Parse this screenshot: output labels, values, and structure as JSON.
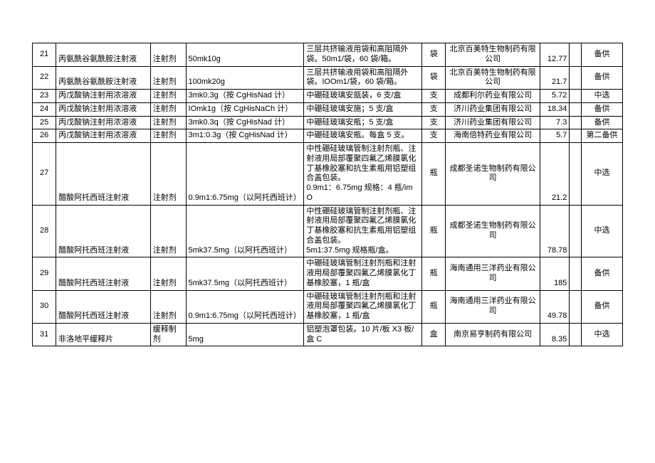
{
  "table": {
    "font_size": 11,
    "border_color": "#000000",
    "background": "#ffffff",
    "rows": [
      {
        "idx": "21",
        "name": "丙氨酰谷氨酰胺注射液",
        "form": "注射剂",
        "spec": "50mk10g",
        "pack": "三层共挤输液用袋和高阻隔外袋。50m1/袋，60 袋/箱。",
        "unit": "袋",
        "maker": "北京百美特生物制药有限公司",
        "price": "12.77",
        "stat": "备供"
      },
      {
        "idx": "22",
        "name": "丙氨酰谷氨酰胺注射液",
        "form": "注射剂",
        "spec": "100mk20g",
        "pack": "三层共挤输液用袋和高阻隔外袋。IOOm1/袋，60 袋/箱。",
        "unit": "袋",
        "maker": "北京百美特生物制药有限公司",
        "price": "21.7",
        "stat": "备供"
      },
      {
        "idx": "23",
        "name": "丙戊酸钠注射用浓溶液",
        "form": "注射剂",
        "spec": "3mk0.3g（按 CgHisNad 计）",
        "pack": "中硼硅玻璃安瓿装，6 支/盒",
        "unit": "支",
        "maker": "成都利尔药业有限公司",
        "price": "5.72",
        "stat": "中选"
      },
      {
        "idx": "24",
        "name": "丙戊酸钠注射用浓溶液",
        "form": "注射剂",
        "spec": "IOmk1g（按 CgHisNaCh 计）",
        "pack": "中硼硅玻璃安施；5 支/盒",
        "unit": "支",
        "maker": "济川药业集团有限公司",
        "price": "18.34",
        "stat": "备供"
      },
      {
        "idx": "25",
        "name": "丙戊酸钠注射用浓溶液",
        "form": "注射剂",
        "spec": "3mk0.3q（按 CgHisNad 计）",
        "pack": "中硼硅玻璃安瓶；5 支/盒",
        "unit": "支",
        "maker": "济川药业集团有限公司",
        "price": "7.3",
        "stat": "备供"
      },
      {
        "idx": "26",
        "name": "丙戊酸钠注射用浓溶液",
        "form": "注射剂",
        "spec": "3m1:0.3g（按 CgHisNad 计）",
        "pack": "中硼硅玻璃安瓶。每盒 5 支。",
        "unit": "支",
        "maker": "海南倍特药业有限公司",
        "price": "5.7",
        "stat": "第二备供"
      },
      {
        "idx": "27",
        "name": "醋酸阿托西班注射液",
        "form": "注射剂",
        "spec": "0.9m1:6.75mg（以阿托西班计）",
        "pack": "中性硼硅玻璃管制注射剂瓶、注射液用局部覆聚四氟乙烯膜氯化丁基橡胶塞和抗生素瓶用铝塑组合盖包装。<br>0.9m1：6.75mg 规格：4 瓶/im O",
        "unit": "瓶",
        "maker": "成都圣诺生物制药有限公司",
        "price": "21.2",
        "stat": "中选"
      },
      {
        "idx": "28",
        "name": "醋酸阿托西班注射液",
        "form": "注射剂",
        "spec": "5mk37.5mg（以阿托西班计）",
        "pack": "中性硼硅玻璃管制注射剂瓶、注射液用局部覆聚四氟乙烯膜氯化丁基橡胶塞和抗生素瓶用铝塑组合盖包装。<br>5m1:37.5mg 规格瓶/盒。",
        "unit": "瓶",
        "maker": "成都圣诺生物制药有限公司",
        "price": "78.78",
        "stat": "中选"
      },
      {
        "idx": "29",
        "name": "醋酸阿托西班注射液",
        "form": "注射剂",
        "spec": "5mk37.5mg（以阿托西班计）",
        "pack": "中硼硅玻璃管制注射剂瓶和注射液用局部覆聚四氟乙烯膜氯化丁基橡胶塞，1 瓶/盒",
        "unit": "瓶",
        "maker": "海南通用三洋药业有限公司",
        "price": "185",
        "stat": "备供"
      },
      {
        "idx": "30",
        "name": "醋酸阿托西班注射液",
        "form": "注射剂",
        "spec": "0.9m1:6.75mg（以阿托西班计）",
        "pack": "中硼硅玻璃管制注射剂瓶和注射液用局部覆聚四氟乙烯膜氯化丁基橡胶塞，1 瓶/盒",
        "unit": "瓶",
        "maker": "海南通用三洋药业有限公司",
        "price": "49.78",
        "stat": "备供"
      },
      {
        "idx": "31",
        "name": "非洛地平缓释片",
        "form": "缓释制剂",
        "spec": "5mg",
        "pack": "铝塑泡罩包装。10 片/板 X3 板/盒 C",
        "unit": "盒",
        "maker": "南京易亨制药有限公司",
        "price": "8.35",
        "stat": "中选"
      }
    ]
  }
}
